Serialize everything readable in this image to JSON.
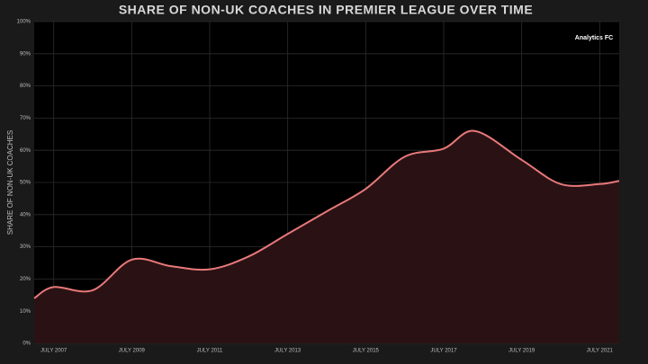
{
  "chart_data": {
    "type": "line",
    "title": "SHARE OF NON-UK COACHES IN PREMIER LEAGUE OVER TIME",
    "y_label": "SHARE OF NON-UK COACHES",
    "logo": "Analytics FC",
    "x": [
      2007,
      2007.5,
      2008.5,
      2009.5,
      2010.5,
      2011.5,
      2012.5,
      2013.5,
      2014.5,
      2015.5,
      2016.5,
      2017.5,
      2018.3,
      2019.5,
      2020.5,
      2021.5,
      2022
    ],
    "series": [
      {
        "name": "Share of non-UK coaches",
        "color": "#e8787a",
        "values": [
          14,
          17.5,
          16.5,
          26,
          24,
          23,
          27,
          34,
          41,
          48,
          58,
          60.5,
          66,
          57,
          49.5,
          49.5,
          50.5
        ]
      }
    ],
    "xlim": [
      2007,
      2022
    ],
    "xticks": [
      {
        "value": 2007.5,
        "label": "JULY 2007"
      },
      {
        "value": 2009.5,
        "label": "JULY 2009"
      },
      {
        "value": 2011.5,
        "label": "JULY 2011"
      },
      {
        "value": 2013.5,
        "label": "JULY 2013"
      },
      {
        "value": 2015.5,
        "label": "JULY 2015"
      },
      {
        "value": 2017.5,
        "label": "JULY 2017"
      },
      {
        "value": 2019.5,
        "label": "JULY 2019"
      },
      {
        "value": 2021.5,
        "label": "JULY 2021"
      }
    ],
    "ylim": [
      0,
      100
    ],
    "yticks": [
      {
        "value": 0,
        "label": "0%"
      },
      {
        "value": 10,
        "label": "10%"
      },
      {
        "value": 20,
        "label": "20%"
      },
      {
        "value": 30,
        "label": "30%"
      },
      {
        "value": 40,
        "label": "40%"
      },
      {
        "value": 50,
        "label": "50%"
      },
      {
        "value": 60,
        "label": "60%"
      },
      {
        "value": 70,
        "label": "70%"
      },
      {
        "value": 80,
        "label": "80%"
      },
      {
        "value": 90,
        "label": "90%"
      },
      {
        "value": 100,
        "label": "100%"
      }
    ],
    "grid": true,
    "area_fill": "#2a1214"
  }
}
